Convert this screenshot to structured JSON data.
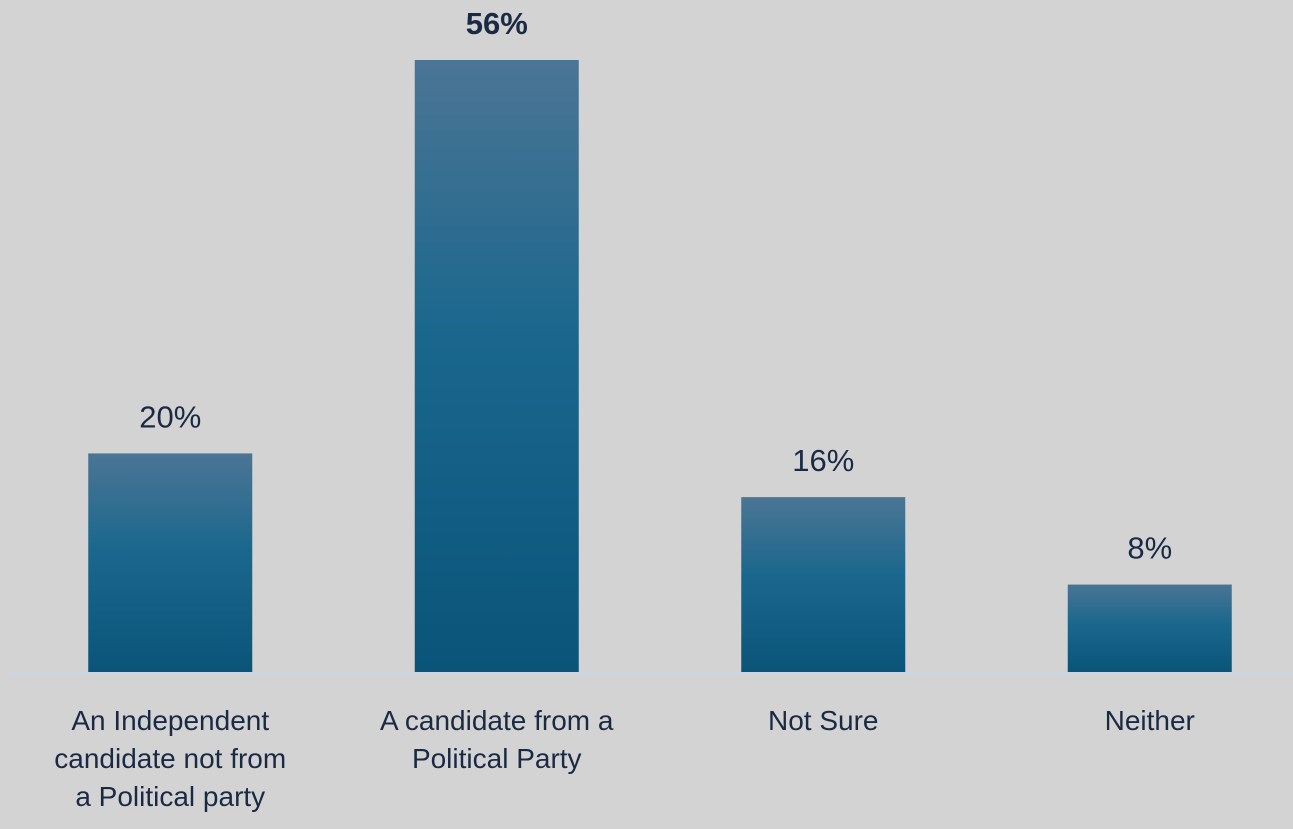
{
  "chart_data": {
    "type": "bar",
    "categories": [
      [
        "An Independent",
        "candidate not from",
        "a Political party"
      ],
      [
        "A candidate from a",
        "Political Party"
      ],
      [
        "Not Sure"
      ],
      [
        "Neither"
      ]
    ],
    "values": [
      20,
      56,
      16,
      8
    ],
    "data_labels": [
      "20%",
      "56%",
      "16%",
      "8%"
    ],
    "emphasized_index": 1,
    "unit": "%",
    "ylim": [
      0,
      56
    ],
    "title": "",
    "xlabel": "",
    "ylabel": "",
    "grid": false,
    "legend": "none",
    "colors": {
      "background": "#d3d3d3",
      "bar_top": "#4b7595",
      "bar_bottom": "#0a5479",
      "axis": "#c9d6e6",
      "text": "#1b2a44"
    }
  }
}
